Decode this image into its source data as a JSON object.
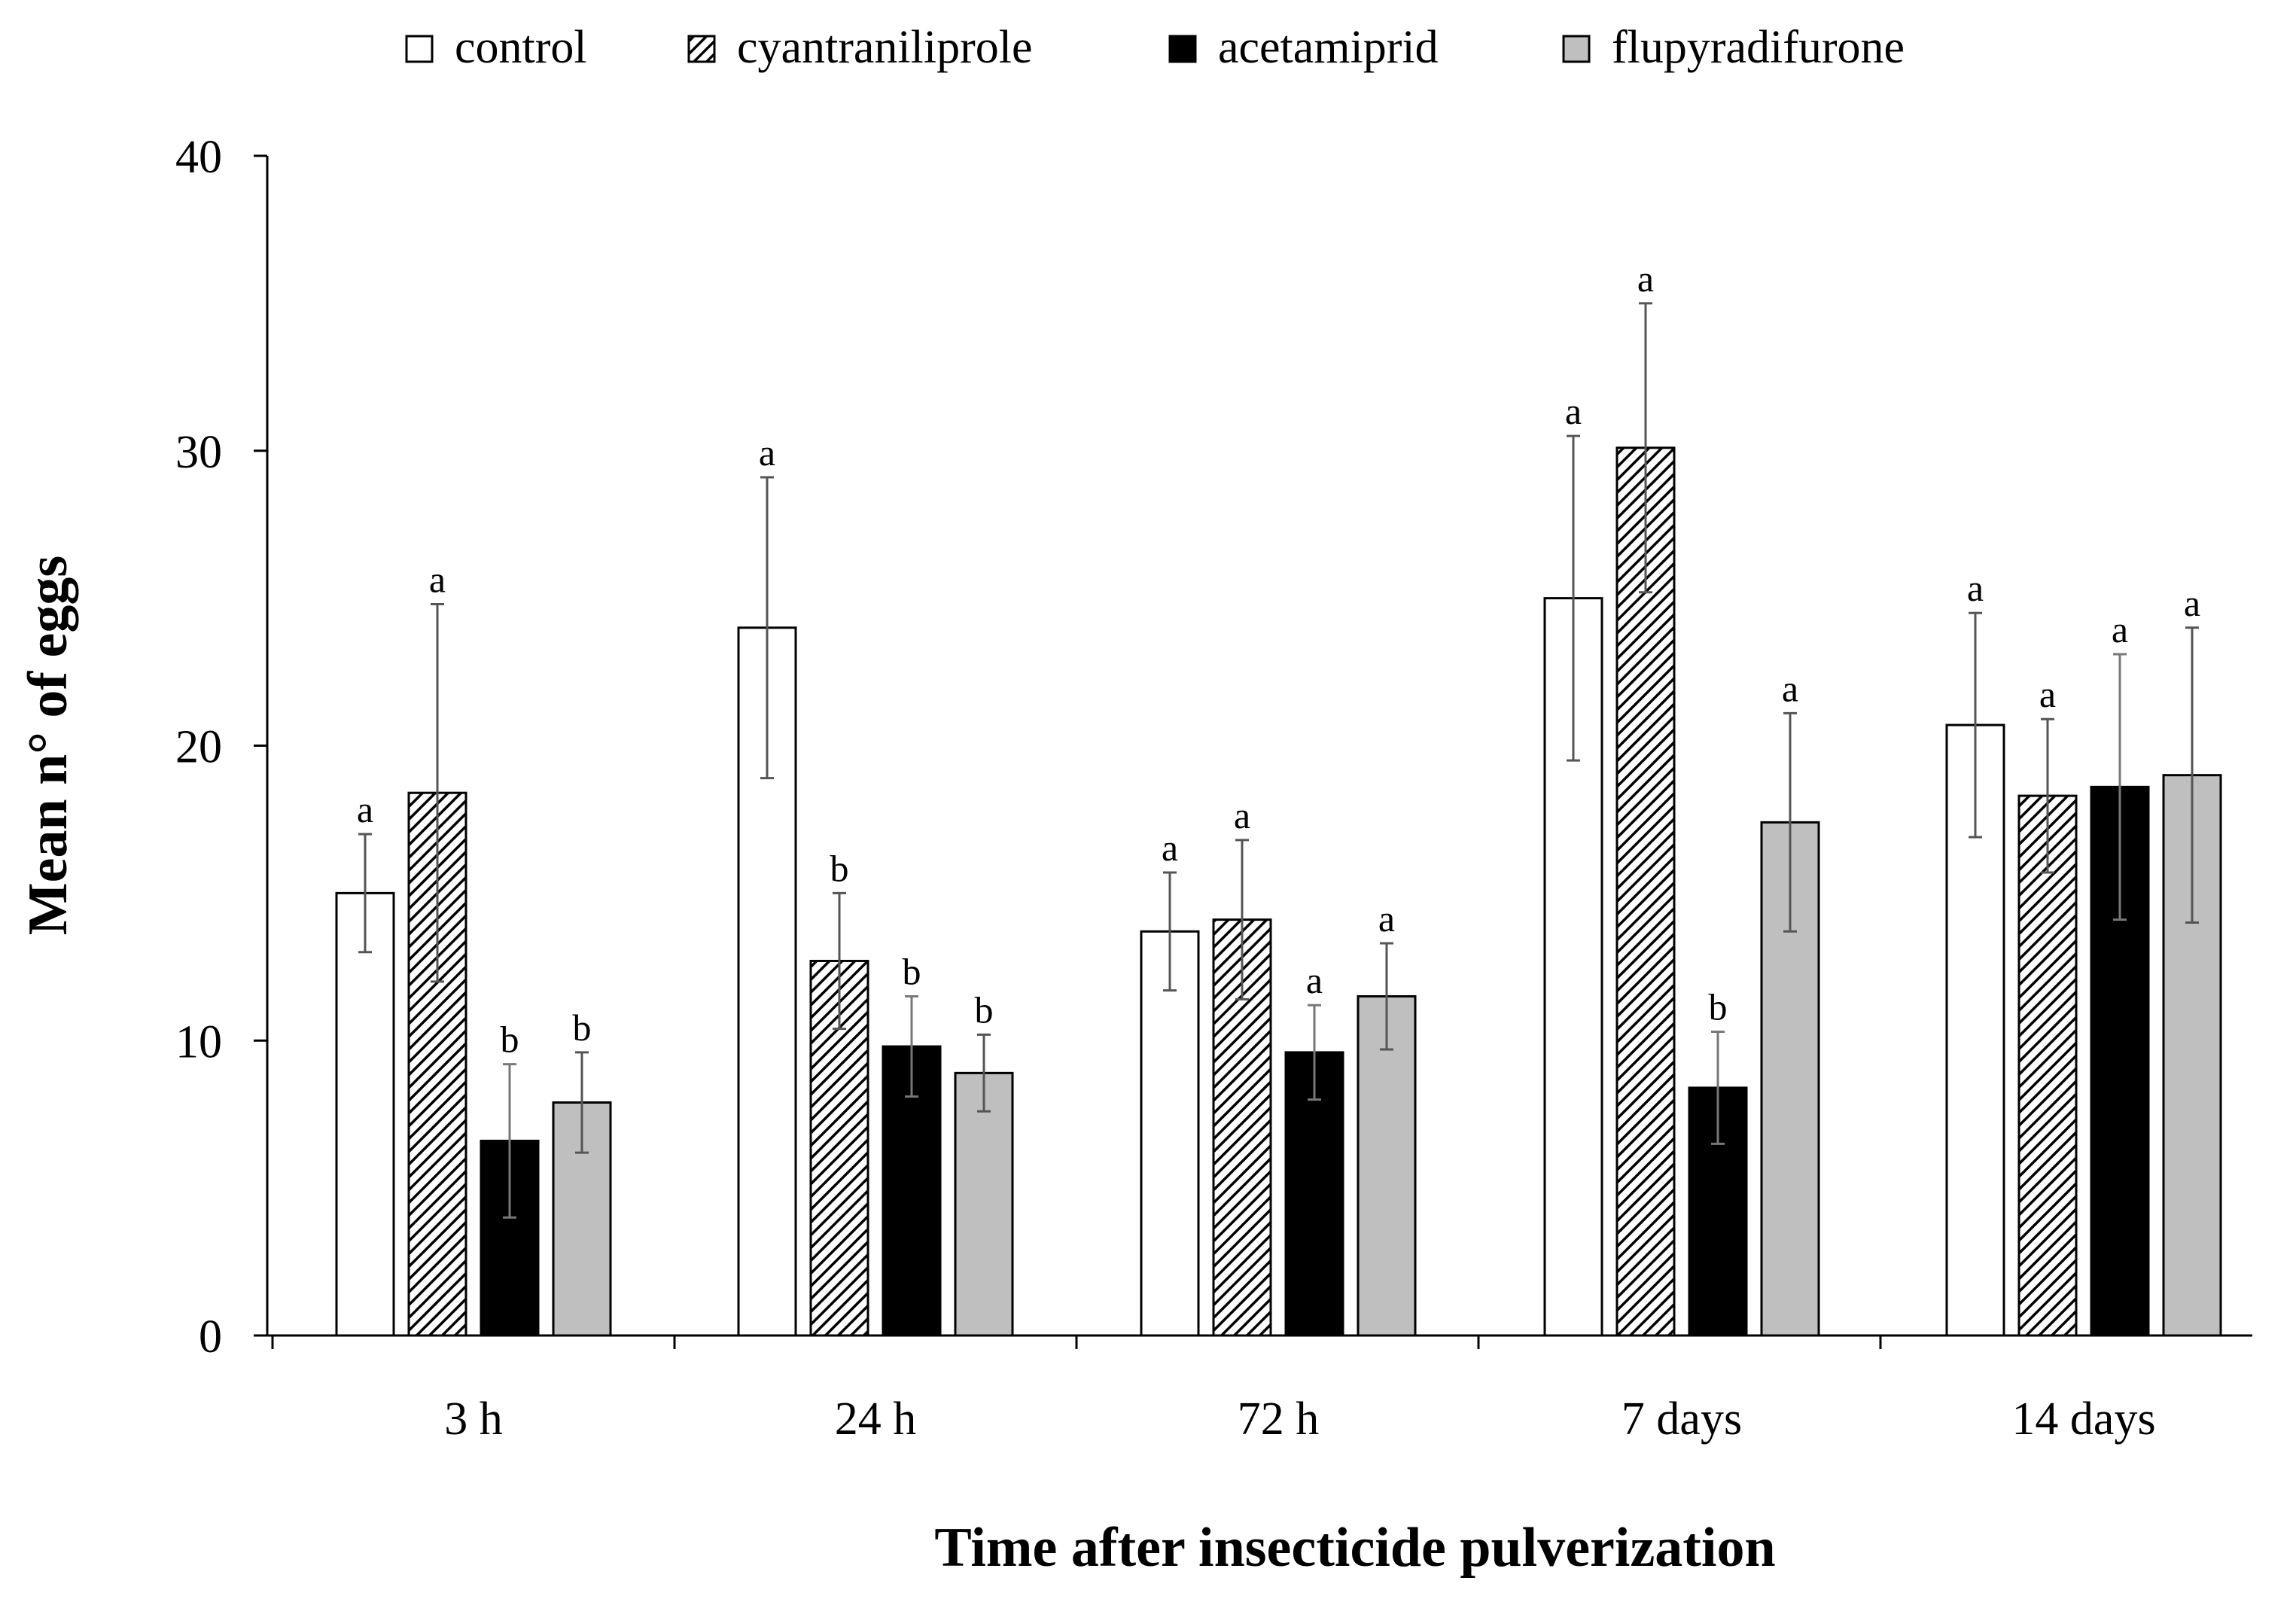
{
  "chart_data": {
    "type": "bar",
    "title": "",
    "xlabel": "Time after insecticide pulverization",
    "ylabel": "Mean n° of eggs",
    "ylim": [
      0,
      40
    ],
    "yticks": [
      0,
      10,
      20,
      30,
      40
    ],
    "grid": false,
    "legend_position": "top",
    "categories": [
      "3 h",
      "24 h",
      "72 h",
      "7 days",
      "14 days"
    ],
    "series": [
      {
        "name": "control",
        "pattern": "white",
        "values": [
          15.0,
          24.0,
          13.7,
          25.0,
          20.7
        ],
        "error": [
          2.0,
          5.1,
          2.0,
          5.5,
          3.8
        ],
        "letters": [
          "a",
          "a",
          "a",
          "a",
          "a"
        ]
      },
      {
        "name": "cyantraniliprole",
        "pattern": "hatched",
        "values": [
          18.4,
          12.7,
          14.1,
          30.1,
          18.3
        ],
        "error": [
          6.4,
          2.3,
          2.7,
          4.9,
          2.6
        ],
        "letters": [
          "a",
          "b",
          "a",
          "a",
          "a"
        ]
      },
      {
        "name": "acetamiprid",
        "pattern": "black",
        "values": [
          6.6,
          9.8,
          9.6,
          8.4,
          18.6
        ],
        "error": [
          2.6,
          1.7,
          1.6,
          1.9,
          4.5
        ],
        "letters": [
          "b",
          "b",
          "a",
          "b",
          "a"
        ]
      },
      {
        "name": "flupyradifurone",
        "pattern": "gray",
        "values": [
          7.9,
          8.9,
          11.5,
          17.4,
          19.0
        ],
        "error": [
          1.7,
          1.3,
          1.8,
          3.7,
          5.0
        ],
        "letters": [
          "b",
          "b",
          "a",
          "a",
          "a"
        ]
      }
    ]
  },
  "colors": {
    "control": "#ffffff",
    "acetamiprid": "#000000",
    "flupyradifurone": "#bfbfbf",
    "hatch_line": "#000000",
    "axis": "#000000",
    "error_bar": "#555555"
  }
}
